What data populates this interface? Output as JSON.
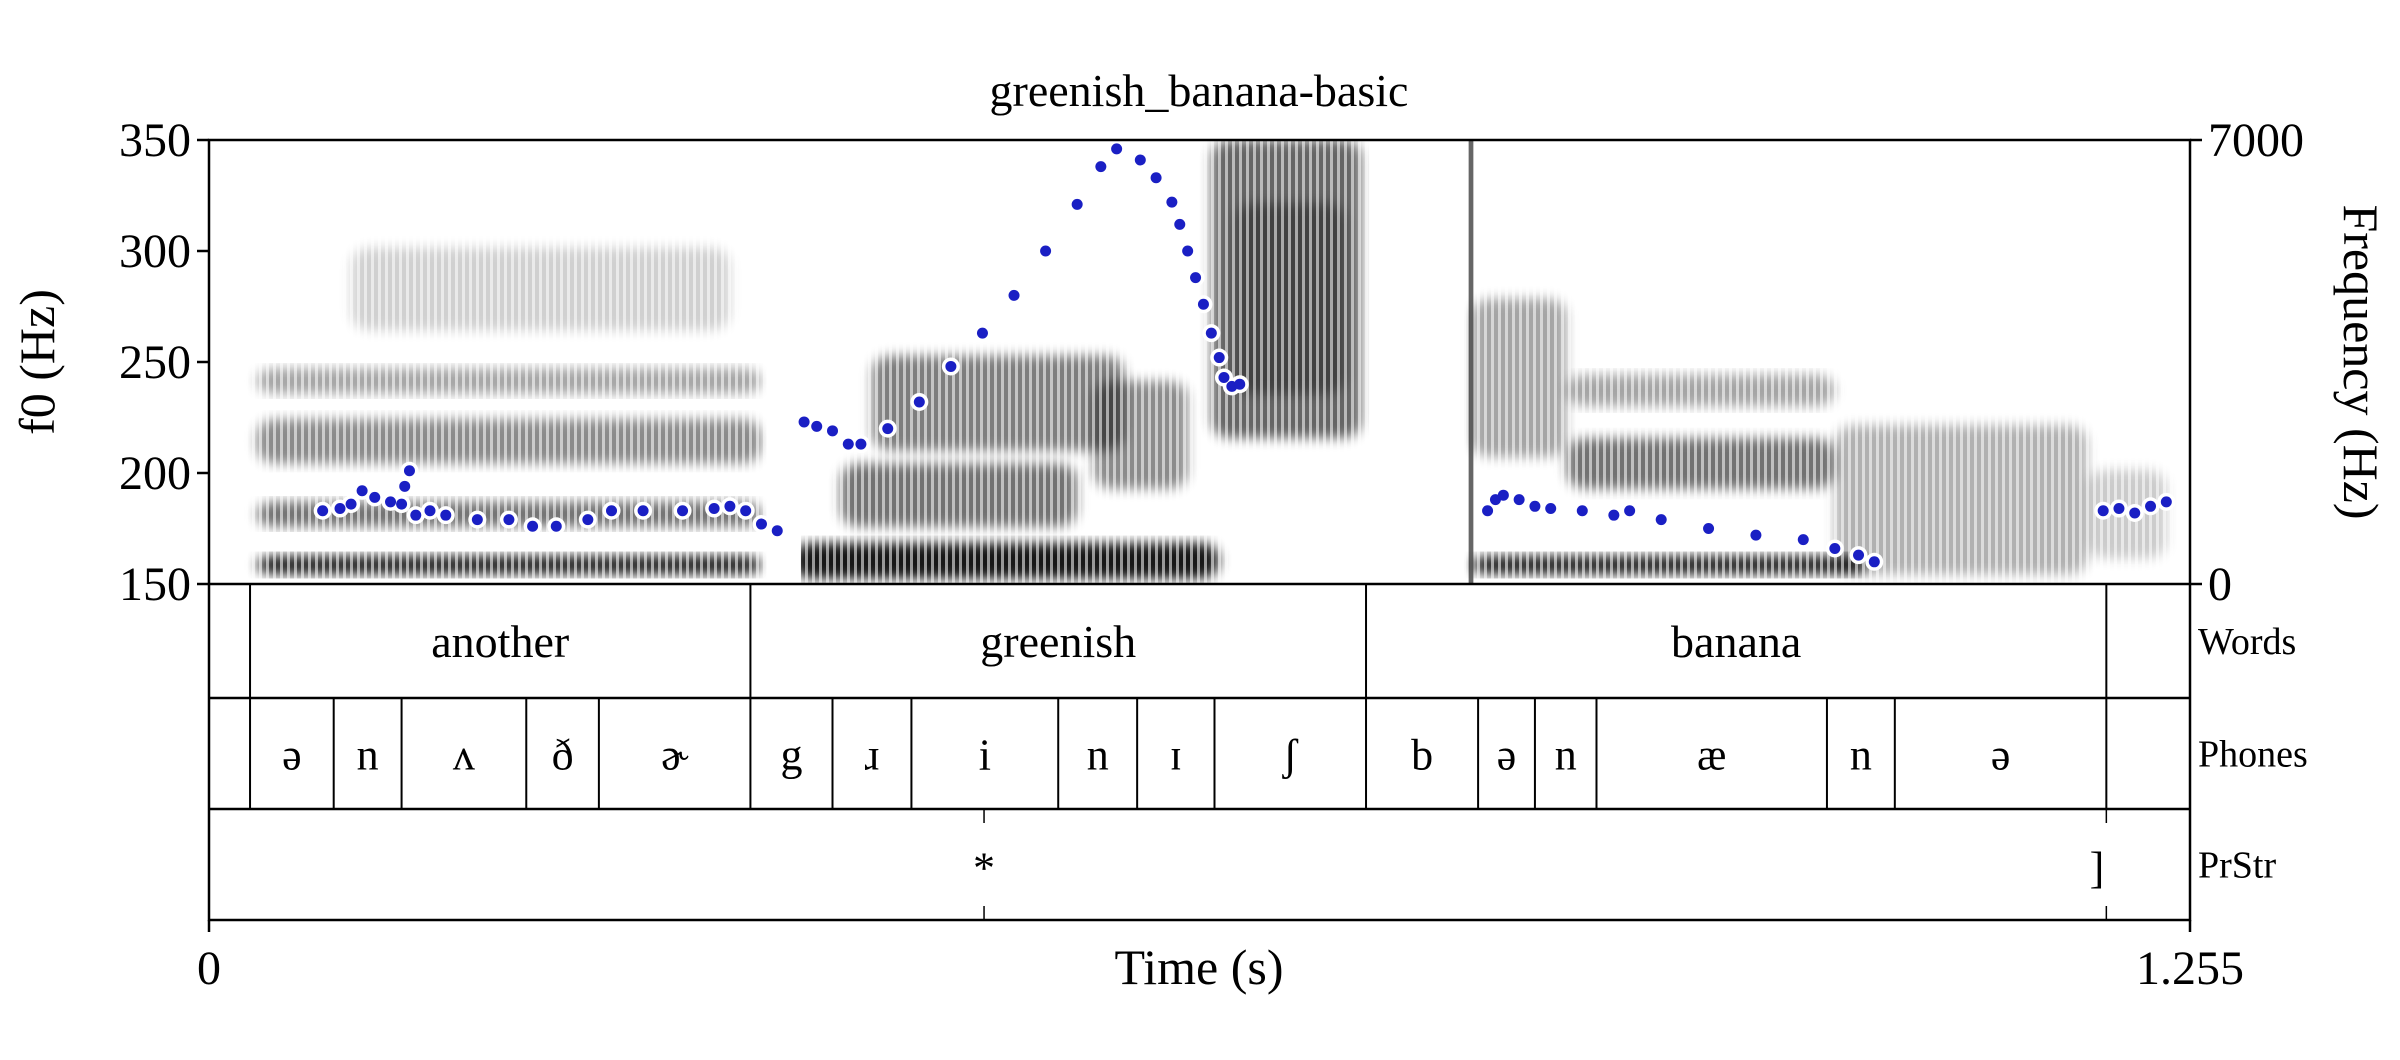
{
  "chart_data": {
    "type": "scatter",
    "title": "greenish_banana-basic",
    "xlabel": "Time (s)",
    "ylabel_left": "f0 (Hz)",
    "ylabel_right": "Frequency (Hz)",
    "x_range": [
      0,
      1.255
    ],
    "x_ticks": [
      "0",
      "1.255"
    ],
    "y_left_range": [
      150,
      350
    ],
    "y_left_ticks": [
      150,
      200,
      250,
      300,
      350
    ],
    "y_right_range": [
      0,
      7000
    ],
    "y_right_ticks": [
      "0",
      "7000"
    ],
    "point_color": "#1a1fc4",
    "spectrogram_color": "#000000",
    "series": [
      {
        "values": [
          {
            "x": 0.072,
            "y": 183
          },
          {
            "x": 0.083,
            "y": 184
          },
          {
            "x": 0.09,
            "y": 186
          },
          {
            "x": 0.097,
            "y": 192
          },
          {
            "x": 0.105,
            "y": 189
          },
          {
            "x": 0.115,
            "y": 187
          },
          {
            "x": 0.122,
            "y": 186
          },
          {
            "x": 0.124,
            "y": 194
          },
          {
            "x": 0.127,
            "y": 201
          },
          {
            "x": 0.131,
            "y": 181
          },
          {
            "x": 0.14,
            "y": 183
          },
          {
            "x": 0.15,
            "y": 181
          },
          {
            "x": 0.17,
            "y": 179
          },
          {
            "x": 0.19,
            "y": 179
          },
          {
            "x": 0.205,
            "y": 176
          },
          {
            "x": 0.22,
            "y": 176
          },
          {
            "x": 0.24,
            "y": 179
          },
          {
            "x": 0.255,
            "y": 183
          },
          {
            "x": 0.275,
            "y": 183
          },
          {
            "x": 0.3,
            "y": 183
          },
          {
            "x": 0.32,
            "y": 184
          },
          {
            "x": 0.33,
            "y": 185
          },
          {
            "x": 0.34,
            "y": 183
          },
          {
            "x": 0.35,
            "y": 177
          },
          {
            "x": 0.36,
            "y": 174
          },
          {
            "x": 0.377,
            "y": 223
          },
          {
            "x": 0.385,
            "y": 221
          },
          {
            "x": 0.395,
            "y": 219
          },
          {
            "x": 0.405,
            "y": 213
          },
          {
            "x": 0.413,
            "y": 213
          },
          {
            "x": 0.43,
            "y": 220
          },
          {
            "x": 0.45,
            "y": 232
          },
          {
            "x": 0.47,
            "y": 248
          },
          {
            "x": 0.49,
            "y": 263
          },
          {
            "x": 0.51,
            "y": 280
          },
          {
            "x": 0.53,
            "y": 300
          },
          {
            "x": 0.55,
            "y": 321
          },
          {
            "x": 0.565,
            "y": 338
          },
          {
            "x": 0.575,
            "y": 346
          },
          {
            "x": 0.59,
            "y": 341
          },
          {
            "x": 0.6,
            "y": 333
          },
          {
            "x": 0.61,
            "y": 322
          },
          {
            "x": 0.615,
            "y": 312
          },
          {
            "x": 0.62,
            "y": 300
          },
          {
            "x": 0.625,
            "y": 288
          },
          {
            "x": 0.63,
            "y": 276
          },
          {
            "x": 0.635,
            "y": 263
          },
          {
            "x": 0.64,
            "y": 252
          },
          {
            "x": 0.643,
            "y": 243
          },
          {
            "x": 0.648,
            "y": 239
          },
          {
            "x": 0.653,
            "y": 240
          },
          {
            "x": 0.81,
            "y": 183
          },
          {
            "x": 0.815,
            "y": 188
          },
          {
            "x": 0.82,
            "y": 190
          },
          {
            "x": 0.83,
            "y": 188
          },
          {
            "x": 0.84,
            "y": 185
          },
          {
            "x": 0.85,
            "y": 184
          },
          {
            "x": 0.87,
            "y": 183
          },
          {
            "x": 0.89,
            "y": 181
          },
          {
            "x": 0.9,
            "y": 183
          },
          {
            "x": 0.92,
            "y": 179
          },
          {
            "x": 0.95,
            "y": 175
          },
          {
            "x": 0.98,
            "y": 172
          },
          {
            "x": 1.01,
            "y": 170
          },
          {
            "x": 1.03,
            "y": 166
          },
          {
            "x": 1.045,
            "y": 163
          },
          {
            "x": 1.055,
            "y": 160
          },
          {
            "x": 1.2,
            "y": 183
          },
          {
            "x": 1.21,
            "y": 184
          },
          {
            "x": 1.22,
            "y": 182
          },
          {
            "x": 1.23,
            "y": 185
          },
          {
            "x": 1.24,
            "y": 187
          }
        ]
      }
    ],
    "tiers": [
      {
        "name": "Words",
        "boundaries": [
          0.026,
          0.343,
          0.733,
          1.202
        ],
        "labels": [
          {
            "start": 0.026,
            "end": 0.343,
            "text": "another"
          },
          {
            "start": 0.343,
            "end": 0.733,
            "text": "greenish"
          },
          {
            "start": 0.733,
            "end": 1.202,
            "text": "banana"
          }
        ]
      },
      {
        "name": "Phones",
        "boundaries": [
          0.026,
          0.079,
          0.122,
          0.201,
          0.247,
          0.343,
          0.395,
          0.445,
          0.538,
          0.588,
          0.637,
          0.733,
          0.804,
          0.84,
          0.879,
          1.025,
          1.068,
          1.202
        ],
        "labels": [
          {
            "start": 0.026,
            "end": 0.079,
            "text": "ə"
          },
          {
            "start": 0.079,
            "end": 0.122,
            "text": "n"
          },
          {
            "start": 0.122,
            "end": 0.201,
            "text": "ʌ"
          },
          {
            "start": 0.201,
            "end": 0.247,
            "text": "ð"
          },
          {
            "start": 0.247,
            "end": 0.343,
            "text": "ɚ"
          },
          {
            "start": 0.343,
            "end": 0.395,
            "text": "g"
          },
          {
            "start": 0.395,
            "end": 0.445,
            "text": "ɹ"
          },
          {
            "start": 0.445,
            "end": 0.538,
            "text": "i"
          },
          {
            "start": 0.538,
            "end": 0.588,
            "text": "n"
          },
          {
            "start": 0.588,
            "end": 0.637,
            "text": "ɪ"
          },
          {
            "start": 0.637,
            "end": 0.733,
            "text": "ʃ"
          },
          {
            "start": 0.733,
            "end": 0.804,
            "text": "b"
          },
          {
            "start": 0.804,
            "end": 0.84,
            "text": "ə"
          },
          {
            "start": 0.84,
            "end": 0.879,
            "text": "n"
          },
          {
            "start": 0.879,
            "end": 1.025,
            "text": "æ"
          },
          {
            "start": 1.025,
            "end": 1.068,
            "text": "n"
          },
          {
            "start": 1.068,
            "end": 1.202,
            "text": "ə"
          }
        ]
      },
      {
        "name": "PrStr",
        "points": [
          {
            "time": 0.491,
            "text": "*"
          },
          {
            "time": 1.202,
            "text": "]"
          }
        ]
      }
    ]
  }
}
